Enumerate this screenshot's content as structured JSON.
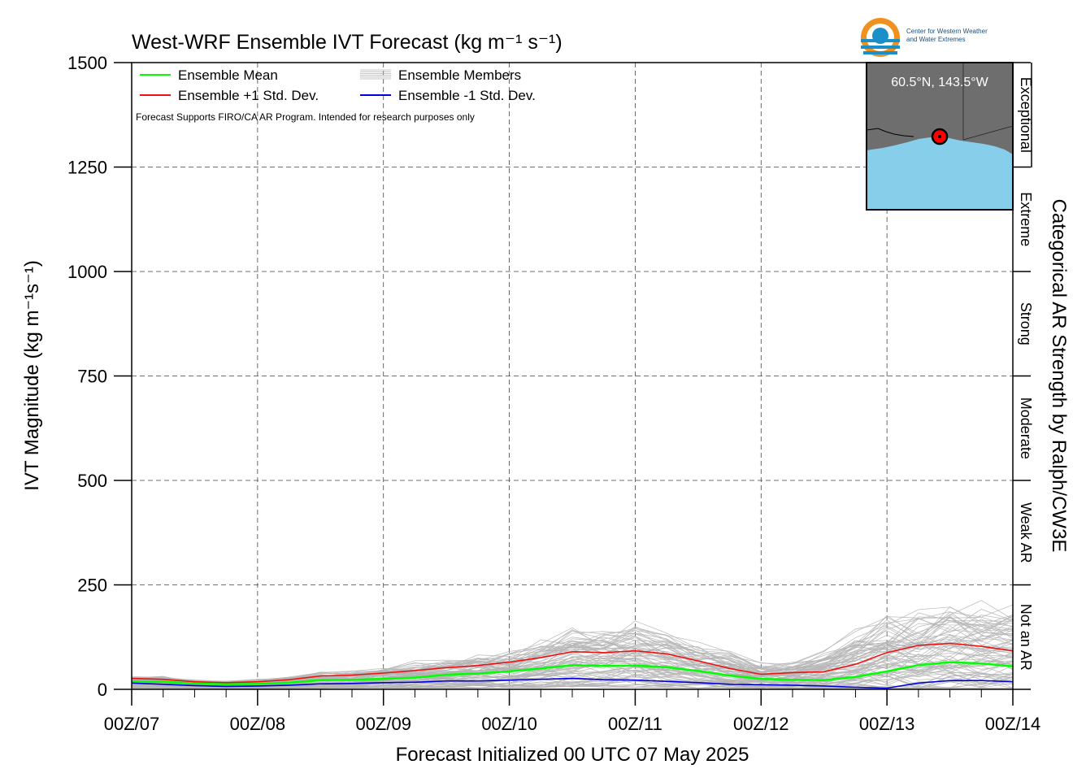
{
  "title": "West-WRF Ensemble IVT Forecast (kg m⁻¹ s⁻¹)",
  "logo": {
    "line1": "Center for Western Weather",
    "line2": "and Water Extremes"
  },
  "note": "Forecast Supports FIRO/CA AR Program. Intended for research purposes only",
  "inset": {
    "location_label": "60.5°N, 143.5°W",
    "land_color": "#6e6e6e",
    "ocean_color": "#87ceeb",
    "marker_color": "#ff0000"
  },
  "legend": {
    "mean": "Ensemble Mean",
    "members": "Ensemble Members",
    "plus": "Ensemble +1 Std. Dev.",
    "minus": "Ensemble -1 Std. Dev."
  },
  "right_axis_label": "Categorical AR Strength by Ralph/CW3E",
  "categories": [
    "Not an AR",
    "Weak AR",
    "Moderate",
    "Strong",
    "Extreme",
    "Exceptional"
  ],
  "colors": {
    "mean": "#00ff00",
    "plus": "#ee1111",
    "minus": "#0000dd",
    "members": "#b4b4b4"
  },
  "chart_data": {
    "type": "line",
    "xlabel": "Forecast Initialized 00 UTC 07 May 2025",
    "ylabel": "IVT Magnitude (kg m⁻¹s⁻¹)",
    "x_ticks": [
      "00Z/07",
      "00Z/08",
      "00Z/09",
      "00Z/10",
      "00Z/11",
      "00Z/12",
      "00Z/13",
      "00Z/14"
    ],
    "y_ticks": [
      0,
      250,
      500,
      750,
      1000,
      1250,
      1500
    ],
    "ylim": [
      0,
      1500
    ],
    "x_unit": "hours since initialization",
    "x": [
      0,
      6,
      12,
      18,
      24,
      30,
      36,
      42,
      48,
      54,
      60,
      66,
      72,
      78,
      84,
      90,
      96,
      102,
      108,
      114,
      120,
      126,
      132,
      138,
      144,
      150,
      156,
      162,
      168
    ],
    "series": [
      {
        "name": "Ensemble Mean",
        "values": [
          19,
          18,
          14,
          12,
          13,
          16,
          22,
          23,
          25,
          28,
          35,
          38,
          43,
          50,
          58,
          56,
          57,
          53,
          44,
          33,
          25,
          23,
          22,
          30,
          43,
          58,
          65,
          62,
          55
        ]
      },
      {
        "name": "Ensemble +1 Std. Dev.",
        "values": [
          26,
          24,
          18,
          16,
          18,
          23,
          32,
          34,
          39,
          45,
          52,
          57,
          65,
          76,
          90,
          88,
          92,
          85,
          68,
          50,
          36,
          40,
          42,
          60,
          88,
          105,
          110,
          103,
          92
        ]
      },
      {
        "name": "Ensemble -1 Std. Dev.",
        "values": [
          15,
          12,
          9,
          7,
          8,
          10,
          13,
          14,
          16,
          17,
          20,
          20,
          22,
          24,
          26,
          23,
          22,
          19,
          16,
          12,
          11,
          10,
          8,
          5,
          3,
          15,
          21,
          21,
          18
        ]
      }
    ],
    "members_envelope": {
      "max": [
        32,
        34,
        24,
        22,
        26,
        32,
        44,
        50,
        62,
        70,
        78,
        90,
        100,
        125,
        160,
        165,
        170,
        150,
        120,
        95,
        70,
        70,
        100,
        150,
        190,
        200,
        220,
        215,
        225
      ],
      "min": [
        2,
        2,
        1,
        1,
        1,
        1,
        2,
        2,
        3,
        3,
        3,
        3,
        4,
        4,
        5,
        5,
        5,
        4,
        3,
        3,
        2,
        2,
        1,
        1,
        1,
        2,
        3,
        3,
        3
      ]
    },
    "grid": true,
    "grid_style": "dashed",
    "legend_position": "top-left"
  }
}
